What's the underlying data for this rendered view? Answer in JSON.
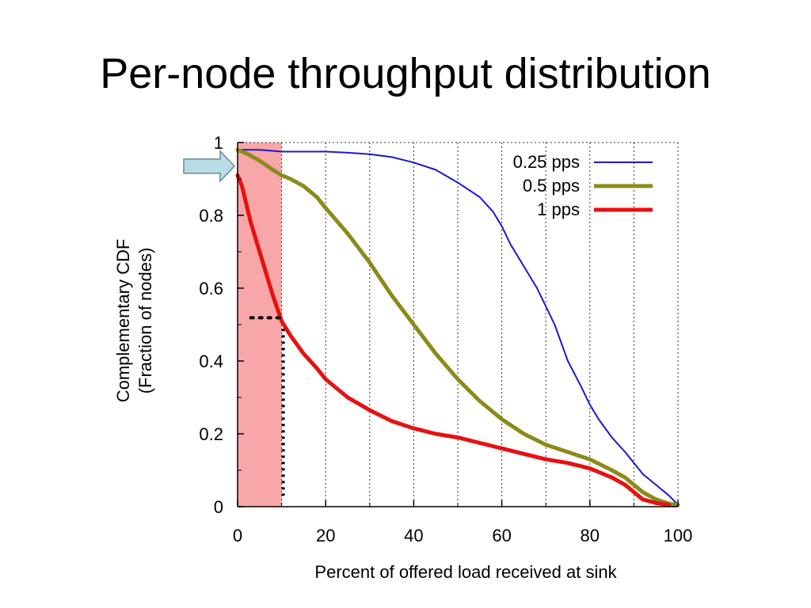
{
  "title": "Per-node throughput distribution",
  "chart_data": {
    "type": "line",
    "xlabel": "Percent of offered load received at sink",
    "ylabel": [
      "Complementary CDF",
      "(Fraction of nodes)"
    ],
    "xlim": [
      0,
      100
    ],
    "ylim": [
      0,
      1
    ],
    "xticks": [
      0,
      20,
      40,
      60,
      80,
      100
    ],
    "yticks": [
      0,
      0.2,
      0.4,
      0.6,
      0.8,
      1
    ],
    "yticklabels": [
      "0",
      "0.2",
      "0.4",
      "0.6",
      "0.8",
      "1"
    ],
    "grid": "vertical dotted lines every 10",
    "legend": "top-right",
    "series": [
      {
        "name": "0.25 pps",
        "color": "#1a1acc",
        "width": 2,
        "x": [
          0,
          5,
          10,
          20,
          25,
          30,
          35,
          40,
          45,
          50,
          55,
          58,
          60,
          62,
          65,
          68,
          70,
          72,
          75,
          78,
          80,
          82,
          85,
          88,
          90,
          92,
          95,
          98,
          100
        ],
        "y": [
          0.98,
          0.98,
          0.975,
          0.975,
          0.972,
          0.968,
          0.96,
          0.945,
          0.925,
          0.89,
          0.85,
          0.81,
          0.77,
          0.72,
          0.66,
          0.6,
          0.55,
          0.5,
          0.4,
          0.33,
          0.28,
          0.24,
          0.19,
          0.15,
          0.12,
          0.09,
          0.06,
          0.03,
          0.005
        ]
      },
      {
        "name": "0.5 pps",
        "color": "#8b8b1a",
        "width": 5,
        "x": [
          0,
          2,
          5,
          8,
          10,
          12,
          15,
          18,
          20,
          25,
          30,
          35,
          40,
          45,
          50,
          55,
          60,
          65,
          70,
          75,
          80,
          85,
          88,
          90,
          92,
          95,
          98,
          100
        ],
        "y": [
          0.98,
          0.97,
          0.95,
          0.925,
          0.91,
          0.9,
          0.88,
          0.85,
          0.82,
          0.75,
          0.67,
          0.58,
          0.5,
          0.42,
          0.35,
          0.29,
          0.24,
          0.2,
          0.17,
          0.15,
          0.13,
          0.1,
          0.08,
          0.06,
          0.04,
          0.02,
          0.008,
          0.005
        ]
      },
      {
        "name": "1 pps",
        "color": "#e81010",
        "width": 5,
        "x": [
          0,
          1,
          2,
          3,
          4,
          5,
          6,
          7,
          8,
          9,
          10,
          12,
          15,
          18,
          20,
          25,
          30,
          35,
          40,
          45,
          50,
          55,
          60,
          65,
          70,
          75,
          80,
          85,
          88,
          90,
          92,
          95,
          98
        ],
        "y": [
          0.91,
          0.88,
          0.83,
          0.78,
          0.74,
          0.7,
          0.66,
          0.62,
          0.58,
          0.545,
          0.51,
          0.47,
          0.42,
          0.38,
          0.35,
          0.3,
          0.265,
          0.235,
          0.215,
          0.2,
          0.19,
          0.175,
          0.16,
          0.145,
          0.13,
          0.12,
          0.105,
          0.08,
          0.06,
          0.04,
          0.02,
          0.01,
          0.005
        ]
      }
    ],
    "annotations": {
      "highlight_band": {
        "x0": 0,
        "x1": 10,
        "color": "#f7a7a7"
      },
      "arrow": {
        "points_to_x": 0,
        "points_to_y": 0.935,
        "color": "#b8dde6"
      },
      "dotted_marker": {
        "x_from": 3,
        "x_to": 10,
        "y": 0.51,
        "y_to": 0.03
      }
    }
  }
}
